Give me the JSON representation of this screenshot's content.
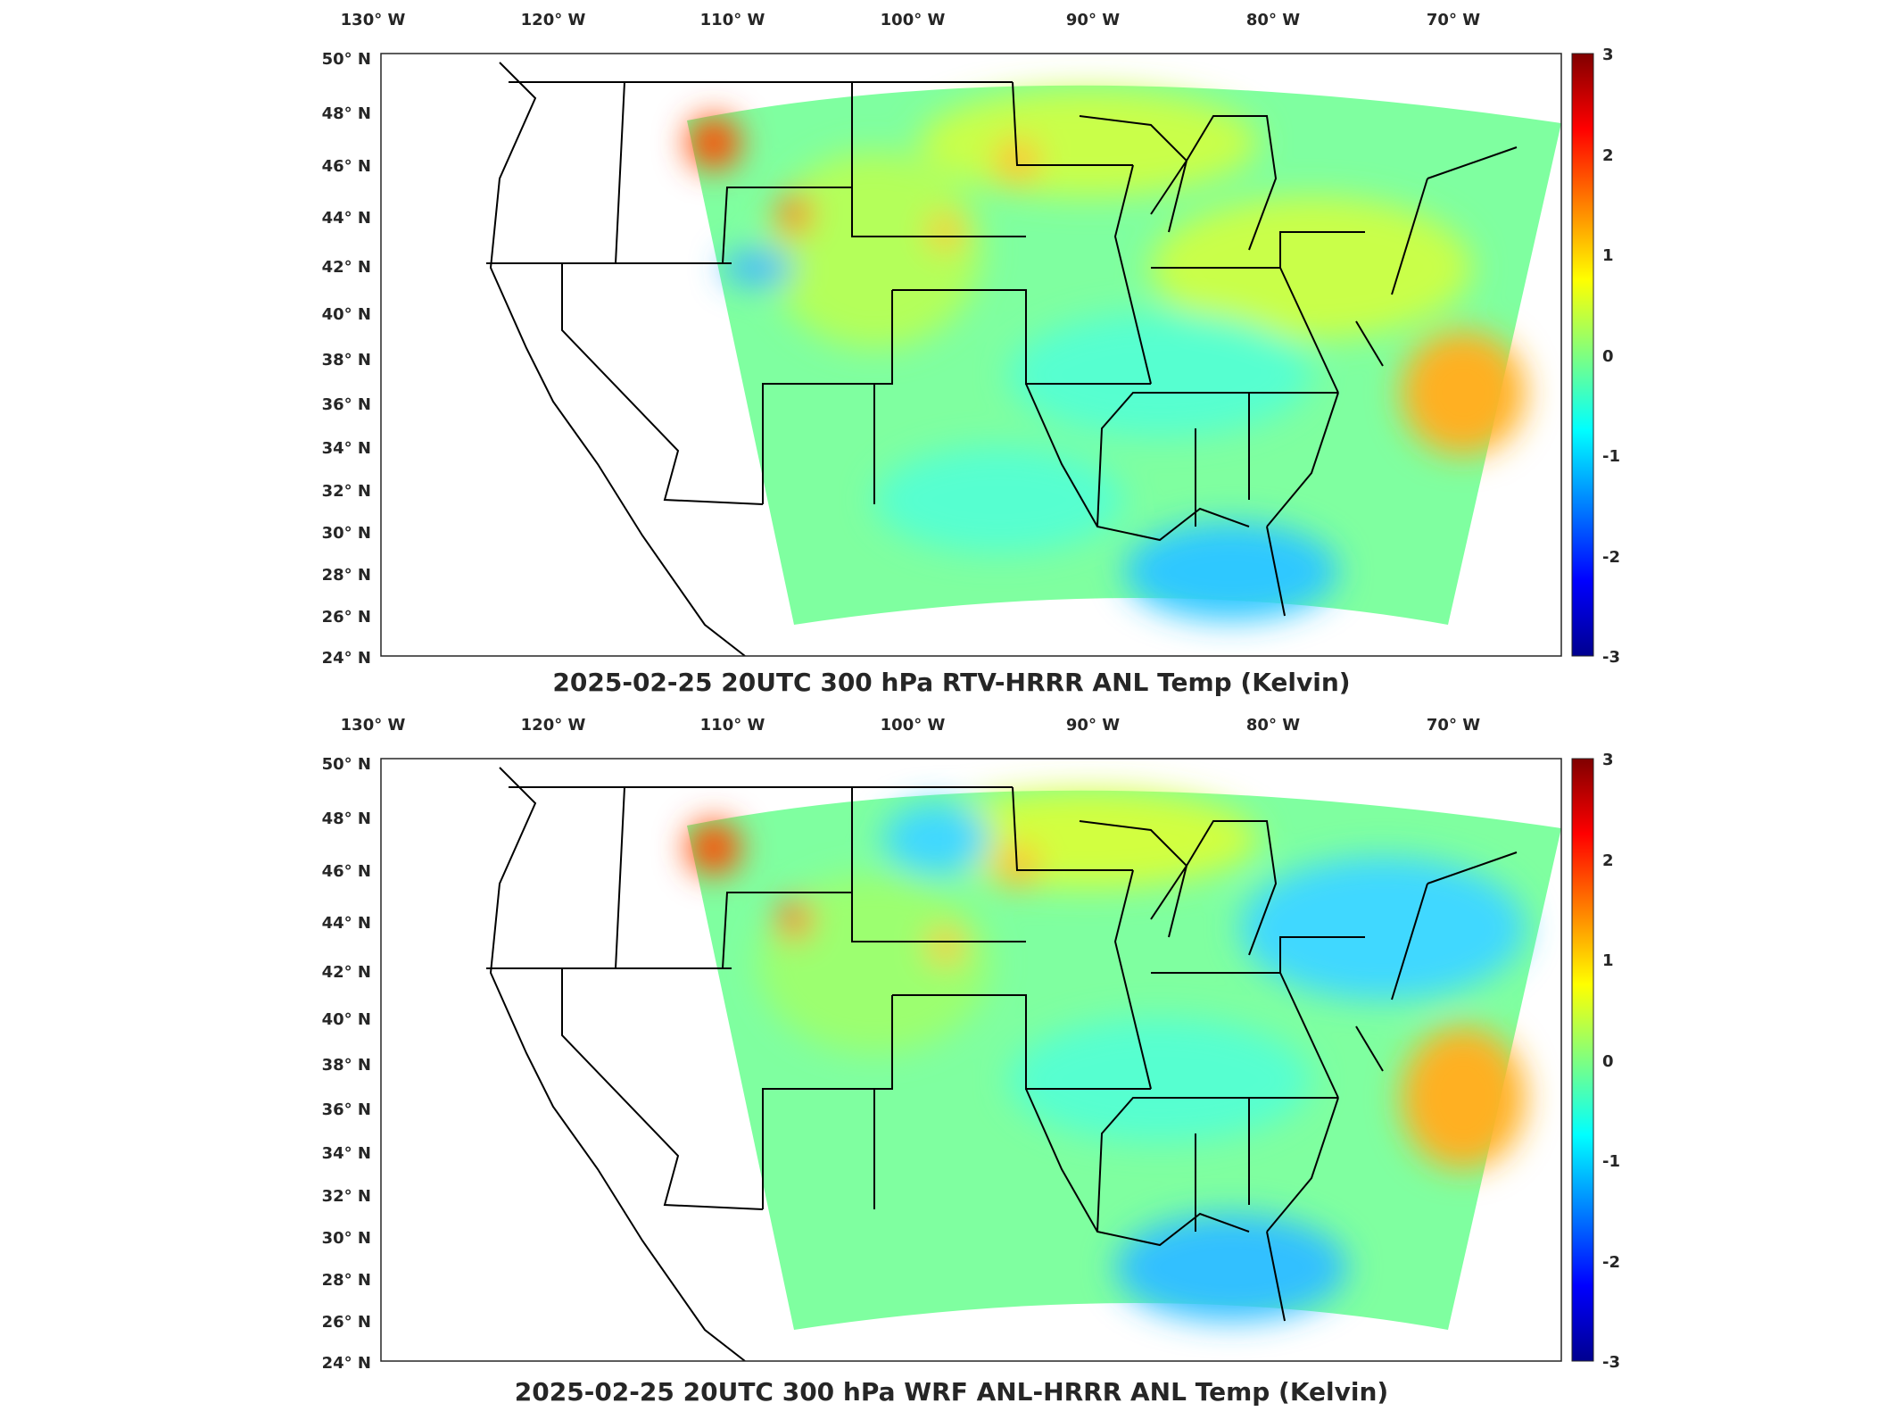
{
  "figure": {
    "panels": [
      {
        "title": "2025-02-25 20UTC 300 hPa RTV-HRRR ANL Temp (Kelvin)",
        "lon_labels": [
          "130° W",
          "120° W",
          "110° W",
          "100° W",
          "90° W",
          "80° W",
          "70° W"
        ],
        "lat_labels": [
          "50° N",
          "48° N",
          "46° N",
          "44° N",
          "42° N",
          "40° N",
          "38° N",
          "36° N",
          "34° N",
          "32° N",
          "30° N",
          "28° N",
          "26° N",
          "24° N"
        ],
        "colorbar": {
          "colormap": "jet",
          "ticks": [
            "3",
            "2",
            "1",
            "0",
            "-1",
            "-2",
            "-3"
          ],
          "min": -3,
          "max": 3
        }
      },
      {
        "title": "2025-02-25 20UTC 300 hPa WRF ANL-HRRR ANL Temp (Kelvin)",
        "lon_labels": [
          "130° W",
          "120° W",
          "110° W",
          "100° W",
          "90° W",
          "80° W",
          "70° W"
        ],
        "lat_labels": [
          "50° N",
          "48° N",
          "46° N",
          "44° N",
          "42° N",
          "40° N",
          "38° N",
          "36° N",
          "34° N",
          "32° N",
          "30° N",
          "28° N",
          "26° N",
          "24° N"
        ],
        "colorbar": {
          "colormap": "jet",
          "ticks": [
            "3",
            "2",
            "1",
            "0",
            "-1",
            "-2",
            "-3"
          ],
          "min": -3,
          "max": 3
        }
      }
    ]
  }
}
